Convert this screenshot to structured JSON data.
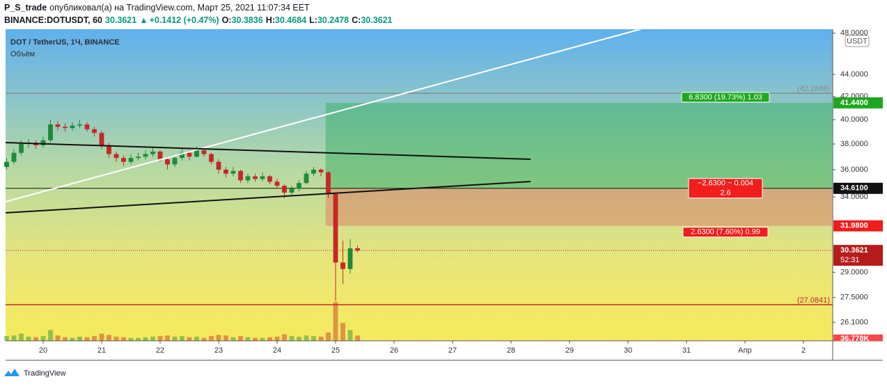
{
  "header": {
    "author": "P_S_trade",
    "published": "опубликовал(а) на TradingView.com, Март 25, 2021 11:07:34 EET",
    "symbol": "BINANCE:DOTUSDT, 60",
    "last": "30.3621",
    "arrow": "▲",
    "change": "+0.1412 (+0.47%)",
    "ohlc": [
      {
        "label": "O:",
        "value": "30.3836"
      },
      {
        "label": "H:",
        "value": "30.4684"
      },
      {
        "label": "L:",
        "value": "30.2478"
      },
      {
        "label": "C:",
        "value": "30.3621"
      }
    ]
  },
  "legend": {
    "title": "DOT / TetherUS, 1Ч, BINANCE",
    "volume": "Объём"
  },
  "currency": "USDT",
  "footer": "TradingView",
  "chart_data": {
    "type": "candlestick",
    "log_scale": true,
    "xlim": [
      19.357,
      33.5
    ],
    "ylim": [
      25.1,
      48.4
    ],
    "volume_lim": [
      0,
      70
    ],
    "xticks": [
      20,
      21,
      22,
      23,
      24,
      25,
      26,
      27,
      28,
      29,
      30,
      31,
      {
        "value": 32,
        "label": "Апр"
      },
      {
        "value": 33,
        "label": "2"
      }
    ],
    "yticks": [
      {
        "value": 48,
        "label": "48.0000"
      },
      {
        "value": 44,
        "label": "44.0000"
      },
      {
        "value": 42,
        "label": "42.0000"
      },
      {
        "value": 40,
        "label": "40.0000"
      },
      {
        "value": 38,
        "label": "38.0000"
      },
      {
        "value": 36,
        "label": "36.0000"
      },
      {
        "value": 34,
        "label": "34.0000"
      },
      {
        "value": 29,
        "label": "29.0000"
      },
      {
        "value": 27.5,
        "label": "27.5000"
      },
      {
        "value": 26.1,
        "label": "26.1000"
      }
    ],
    "up_color": "#1e8a3c",
    "down_color": "#c62828",
    "candles": [
      {
        "t": 19.375,
        "o": 36.2,
        "h": 36.9,
        "l": 36.0,
        "c": 36.6,
        "v": 8
      },
      {
        "t": 19.5,
        "o": 36.6,
        "h": 37.6,
        "l": 36.4,
        "c": 37.3,
        "v": 9
      },
      {
        "t": 19.625,
        "o": 37.3,
        "h": 38.3,
        "l": 37.1,
        "c": 38.0,
        "v": 12
      },
      {
        "t": 19.75,
        "o": 38.0,
        "h": 38.4,
        "l": 37.7,
        "c": 38.1,
        "v": 7
      },
      {
        "t": 19.875,
        "o": 38.1,
        "h": 38.3,
        "l": 37.6,
        "c": 37.9,
        "v": 6
      },
      {
        "t": 20.0,
        "o": 37.9,
        "h": 38.6,
        "l": 37.7,
        "c": 38.3,
        "v": 8
      },
      {
        "t": 20.125,
        "o": 38.3,
        "h": 40.0,
        "l": 38.1,
        "c": 39.6,
        "v": 18
      },
      {
        "t": 20.25,
        "o": 39.6,
        "h": 39.9,
        "l": 39.1,
        "c": 39.4,
        "v": 9
      },
      {
        "t": 20.375,
        "o": 39.4,
        "h": 39.7,
        "l": 39.0,
        "c": 39.3,
        "v": 6
      },
      {
        "t": 20.5,
        "o": 39.3,
        "h": 39.8,
        "l": 39.1,
        "c": 39.5,
        "v": 5
      },
      {
        "t": 20.625,
        "o": 39.5,
        "h": 40.0,
        "l": 39.3,
        "c": 39.6,
        "v": 7
      },
      {
        "t": 20.75,
        "o": 39.6,
        "h": 39.8,
        "l": 39.0,
        "c": 39.2,
        "v": 6
      },
      {
        "t": 20.875,
        "o": 39.2,
        "h": 39.4,
        "l": 38.6,
        "c": 38.9,
        "v": 8
      },
      {
        "t": 21.0,
        "o": 38.9,
        "h": 39.1,
        "l": 37.6,
        "c": 37.9,
        "v": 12
      },
      {
        "t": 21.125,
        "o": 37.9,
        "h": 38.1,
        "l": 36.9,
        "c": 37.2,
        "v": 10
      },
      {
        "t": 21.25,
        "o": 37.2,
        "h": 37.4,
        "l": 36.6,
        "c": 36.9,
        "v": 7
      },
      {
        "t": 21.375,
        "o": 36.9,
        "h": 37.1,
        "l": 36.3,
        "c": 36.6,
        "v": 6
      },
      {
        "t": 21.5,
        "o": 36.6,
        "h": 37.2,
        "l": 36.4,
        "c": 36.9,
        "v": 5
      },
      {
        "t": 21.625,
        "o": 36.9,
        "h": 37.3,
        "l": 36.7,
        "c": 37.0,
        "v": 5
      },
      {
        "t": 21.75,
        "o": 37.0,
        "h": 37.5,
        "l": 36.8,
        "c": 37.2,
        "v": 6
      },
      {
        "t": 21.875,
        "o": 37.2,
        "h": 37.7,
        "l": 37.0,
        "c": 37.4,
        "v": 7
      },
      {
        "t": 22.0,
        "o": 37.4,
        "h": 37.5,
        "l": 36.6,
        "c": 36.8,
        "v": 8
      },
      {
        "t": 22.125,
        "o": 36.8,
        "h": 37.0,
        "l": 36.0,
        "c": 36.4,
        "v": 9
      },
      {
        "t": 22.25,
        "o": 36.4,
        "h": 37.1,
        "l": 36.2,
        "c": 36.9,
        "v": 7
      },
      {
        "t": 22.375,
        "o": 36.9,
        "h": 37.6,
        "l": 36.7,
        "c": 37.3,
        "v": 8
      },
      {
        "t": 22.5,
        "o": 37.3,
        "h": 37.5,
        "l": 36.7,
        "c": 37.0,
        "v": 6
      },
      {
        "t": 22.625,
        "o": 37.0,
        "h": 37.8,
        "l": 36.9,
        "c": 37.5,
        "v": 7
      },
      {
        "t": 22.75,
        "o": 37.5,
        "h": 37.7,
        "l": 37.0,
        "c": 37.2,
        "v": 5
      },
      {
        "t": 22.875,
        "o": 37.2,
        "h": 37.3,
        "l": 36.4,
        "c": 36.6,
        "v": 8
      },
      {
        "t": 23.0,
        "o": 36.6,
        "h": 36.8,
        "l": 35.7,
        "c": 36.0,
        "v": 10
      },
      {
        "t": 23.125,
        "o": 36.0,
        "h": 36.2,
        "l": 35.4,
        "c": 35.7,
        "v": 9
      },
      {
        "t": 23.25,
        "o": 35.7,
        "h": 36.2,
        "l": 35.5,
        "c": 35.9,
        "v": 6
      },
      {
        "t": 23.375,
        "o": 35.9,
        "h": 36.0,
        "l": 35.0,
        "c": 35.2,
        "v": 8
      },
      {
        "t": 23.5,
        "o": 35.2,
        "h": 35.7,
        "l": 35.0,
        "c": 35.5,
        "v": 6
      },
      {
        "t": 23.625,
        "o": 35.5,
        "h": 35.7,
        "l": 35.1,
        "c": 35.3,
        "v": 5
      },
      {
        "t": 23.75,
        "o": 35.3,
        "h": 35.8,
        "l": 35.1,
        "c": 35.5,
        "v": 5
      },
      {
        "t": 23.875,
        "o": 35.5,
        "h": 35.6,
        "l": 34.9,
        "c": 35.1,
        "v": 6
      },
      {
        "t": 24.0,
        "o": 35.1,
        "h": 35.3,
        "l": 34.6,
        "c": 34.8,
        "v": 7
      },
      {
        "t": 24.125,
        "o": 34.8,
        "h": 34.9,
        "l": 33.9,
        "c": 34.3,
        "v": 11
      },
      {
        "t": 24.25,
        "o": 34.3,
        "h": 34.8,
        "l": 34.1,
        "c": 34.6,
        "v": 8
      },
      {
        "t": 24.375,
        "o": 34.6,
        "h": 35.2,
        "l": 34.4,
        "c": 35.0,
        "v": 7
      },
      {
        "t": 24.5,
        "o": 35.0,
        "h": 35.9,
        "l": 34.9,
        "c": 35.7,
        "v": 9
      },
      {
        "t": 24.625,
        "o": 35.7,
        "h": 36.2,
        "l": 35.5,
        "c": 36.0,
        "v": 8
      },
      {
        "t": 24.75,
        "o": 36.0,
        "h": 36.1,
        "l": 35.5,
        "c": 35.8,
        "v": 7
      },
      {
        "t": 24.875,
        "o": 35.8,
        "h": 35.9,
        "l": 33.9,
        "c": 34.2,
        "v": 14
      },
      {
        "t": 25.0,
        "o": 34.2,
        "h": 34.3,
        "l": 27.3,
        "c": 29.6,
        "v": 65
      },
      {
        "t": 25.125,
        "o": 29.6,
        "h": 31.0,
        "l": 28.3,
        "c": 29.2,
        "v": 30
      },
      {
        "t": 25.25,
        "o": 29.2,
        "h": 31.1,
        "l": 28.9,
        "c": 30.5,
        "v": 18
      },
      {
        "t": 25.375,
        "o": 30.5,
        "h": 30.7,
        "l": 30.25,
        "c": 30.3621,
        "v": 9
      }
    ],
    "levels": [
      {
        "value": 42.2848,
        "label": "(42.2848)",
        "color": "#8a8a8a"
      },
      {
        "value": 27.0841,
        "label": "(27.0841)",
        "color": "#c62828"
      }
    ],
    "position": {
      "start": 24.83,
      "target": {
        "value": 41.44,
        "label": "41.4400"
      },
      "entry": {
        "value": 34.61,
        "label": "34.6100"
      },
      "stop": {
        "value": 31.98,
        "label": "31.9800"
      },
      "profit_label": "6.8300 (19.73%) 1.03",
      "risk_label": "2.6300 (7.60%) 0.99",
      "center_label": [
        "−2.6300 ~ 0.004",
        "2.6"
      ]
    },
    "last_price": {
      "value": 30.3621,
      "label": "30.3621",
      "countdown": "52:31"
    },
    "volume_label": "36.778K"
  }
}
